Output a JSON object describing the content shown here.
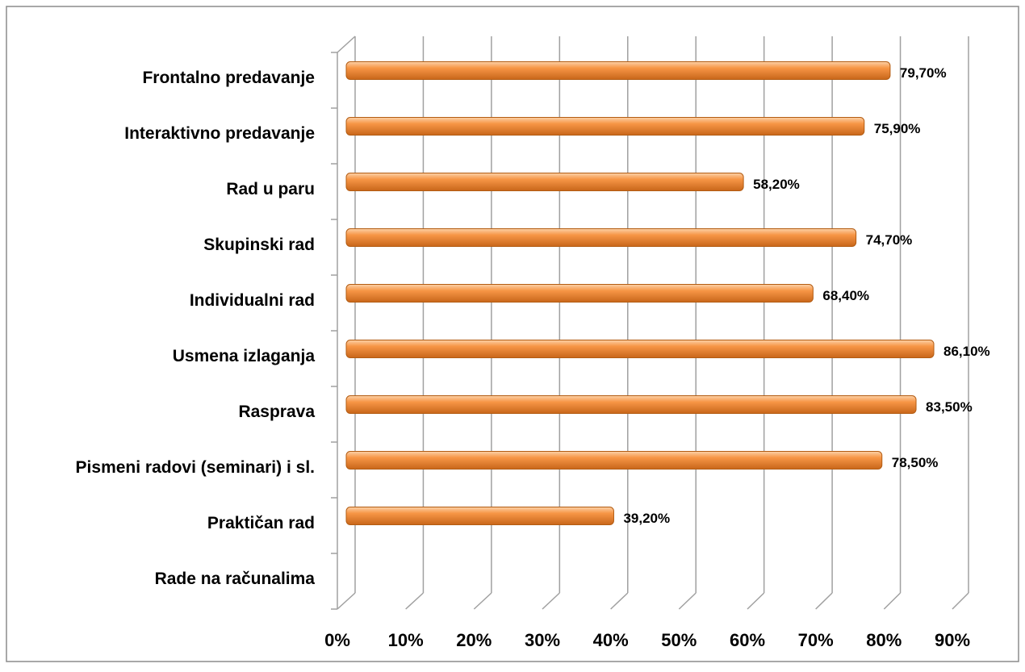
{
  "chart_data": {
    "type": "bar",
    "orientation": "horizontal",
    "categories": [
      "Frontalno predavanje",
      "Interaktivno predavanje",
      "Rad u paru",
      "Skupinski rad",
      "Individualni rad",
      "Usmena izlaganja",
      "Rasprava",
      "Pismeni radovi (seminari) i sl.",
      "Praktičan rad",
      "Rade na računalima"
    ],
    "values": [
      79.7,
      75.9,
      58.2,
      74.7,
      68.4,
      86.1,
      83.5,
      78.5,
      39.2,
      null
    ],
    "value_labels": [
      "79,70%",
      "75,90%",
      "58,20%",
      "74,70%",
      "68,40%",
      "86,10%",
      "83,50%",
      "78,50%",
      "39,20%",
      null
    ],
    "color": "#f79646",
    "xlim": [
      0,
      90
    ],
    "xticks": [
      {
        "value": 0,
        "label": "0%"
      },
      {
        "value": 10,
        "label": "10%"
      },
      {
        "value": 20,
        "label": "20%"
      },
      {
        "value": 30,
        "label": "30%"
      },
      {
        "value": 40,
        "label": "40%"
      },
      {
        "value": 50,
        "label": "50%"
      },
      {
        "value": 60,
        "label": "60%"
      },
      {
        "value": 70,
        "label": "70%"
      },
      {
        "value": 80,
        "label": "80%"
      },
      {
        "value": 90,
        "label": "90%"
      }
    ],
    "grid": true
  }
}
